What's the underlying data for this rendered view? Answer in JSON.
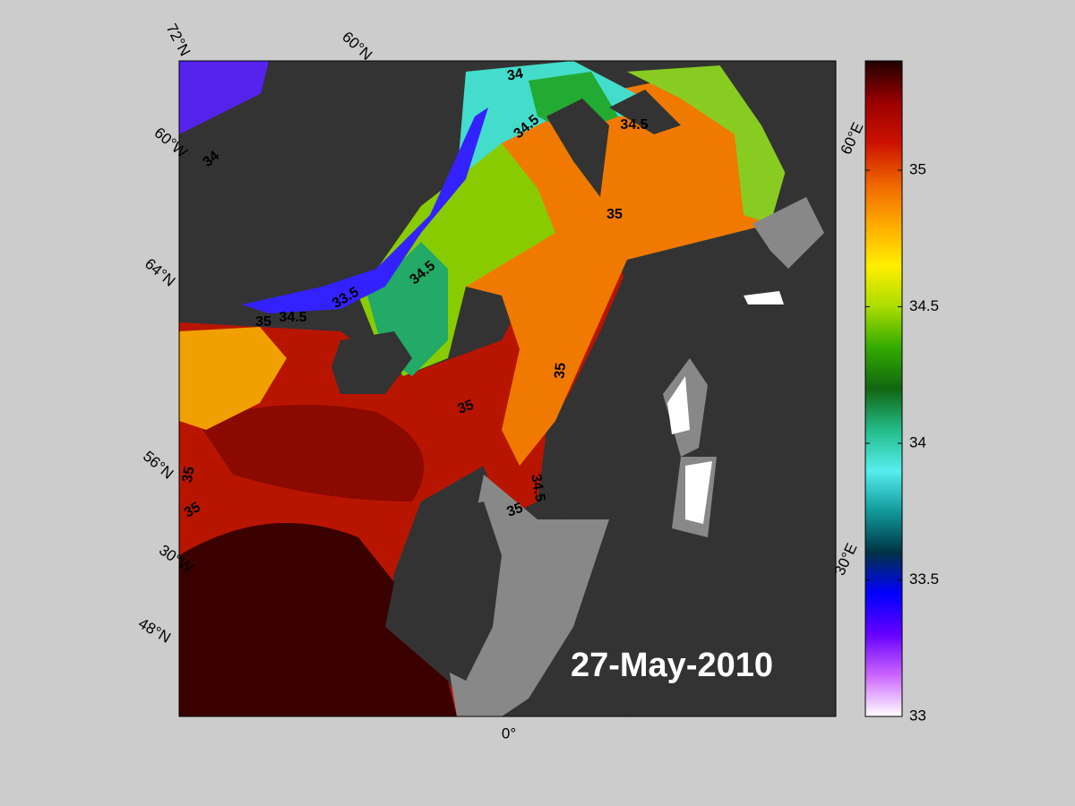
{
  "date_label": "27-May-2010",
  "graticule_labels": [
    "72°N",
    "60°N",
    "60°W",
    "64°N",
    "56°N",
    "30°W",
    "48°N",
    "0°",
    "60°E",
    "30°E"
  ],
  "contour_labels": [
    "34",
    "34.5",
    "34.5",
    "35",
    "34.5",
    "33.5",
    "35",
    "34.5",
    "35",
    "35",
    "35",
    "35",
    "34.5",
    "35",
    "34"
  ],
  "colorbar": {
    "lim": [
      33,
      35.4
    ],
    "ticks": [
      33,
      33.5,
      34,
      34.5,
      35
    ],
    "colors": [
      "#ffffff",
      "#cc66ff",
      "#6600ff",
      "#0000ff",
      "#003344",
      "#119999",
      "#55eeee",
      "#22bb88",
      "#116611",
      "#33aa00",
      "#aadd00",
      "#ffee00",
      "#ffaa00",
      "#ee6600",
      "#cc1100",
      "#990000",
      "#220000"
    ]
  }
}
